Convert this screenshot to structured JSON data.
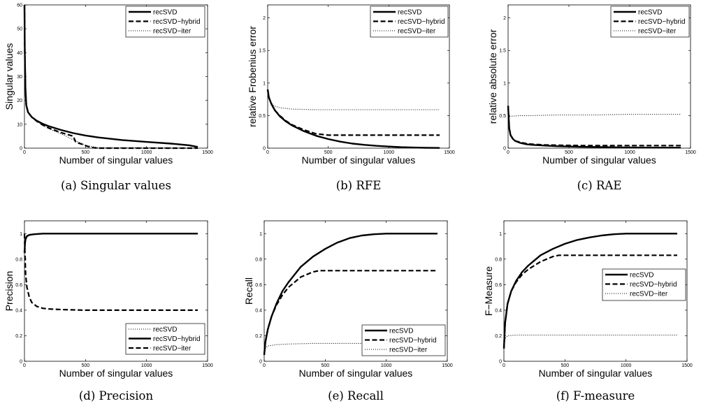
{
  "chart_data": [
    {
      "type": "line",
      "caption": "(a)  Singular values",
      "xlabel": "Number of singular values",
      "ylabel": "Singular values",
      "xlim": [
        0,
        1500
      ],
      "ylim": [
        0,
        60
      ],
      "xticks": [
        "0",
        "500",
        "1000",
        "1500"
      ],
      "yticks": [
        "0",
        "10",
        "20",
        "30",
        "40",
        "50",
        "60"
      ],
      "legend_position": "top-right",
      "series": [
        {
          "name": "recSVD",
          "style": "solid",
          "x": [
            0,
            3,
            8,
            15,
            30,
            60,
            100,
            150,
            200,
            300,
            400,
            500,
            600,
            800,
            1000,
            1200,
            1350,
            1420
          ],
          "y": [
            60,
            40,
            25,
            18,
            15,
            13,
            11.5,
            10.2,
            9.2,
            7.6,
            6.3,
            5.3,
            4.5,
            3.4,
            2.6,
            1.9,
            1.2,
            0.5
          ]
        },
        {
          "name": "recSVD−hybrid",
          "style": "dashed",
          "x": [
            0,
            3,
            8,
            15,
            30,
            60,
            100,
            150,
            200,
            300,
            400,
            420,
            480,
            520,
            560,
            600,
            800,
            1000,
            1200,
            1420
          ],
          "y": [
            60,
            40,
            25,
            18,
            15,
            13,
            11.3,
            9.7,
            8.4,
            6.5,
            5,
            2.5,
            1.5,
            0.7,
            0.2,
            0,
            0,
            0,
            0,
            0
          ]
        },
        {
          "name": "recSVD−iter",
          "style": "dotted",
          "x": [
            0,
            3,
            8,
            15,
            30,
            60,
            100,
            150,
            200,
            300,
            400,
            500,
            600,
            1420
          ],
          "y": [
            60,
            40,
            25,
            18,
            15,
            13,
            11.2,
            9.6,
            8.2,
            6,
            3.5,
            1.2,
            0.2,
            0.1
          ]
        }
      ]
    },
    {
      "type": "line",
      "caption": "(b)  RFE",
      "xlabel": "Number of singular values",
      "ylabel": "relative Frobenius error",
      "xlim": [
        0,
        1500
      ],
      "ylim": [
        0,
        2.2
      ],
      "xticks": [
        "0",
        "500",
        "1000",
        "1500"
      ],
      "yticks": [
        "0",
        "0.5",
        "1",
        "1.5",
        "2"
      ],
      "legend_position": "top-right",
      "series": [
        {
          "name": "recSVD",
          "style": "solid",
          "x": [
            0,
            10,
            30,
            60,
            100,
            150,
            200,
            300,
            400,
            500,
            600,
            700,
            800,
            900,
            1000,
            1100,
            1200,
            1300,
            1420
          ],
          "y": [
            0.9,
            0.78,
            0.68,
            0.58,
            0.49,
            0.41,
            0.35,
            0.26,
            0.19,
            0.14,
            0.1,
            0.07,
            0.05,
            0.035,
            0.025,
            0.015,
            0.01,
            0.005,
            0.003
          ]
        },
        {
          "name": "recSVD−hybrid",
          "style": "dashed",
          "x": [
            0,
            10,
            30,
            60,
            100,
            150,
            200,
            300,
            400,
            450,
            500,
            700,
            1000,
            1420
          ],
          "y": [
            0.9,
            0.78,
            0.68,
            0.58,
            0.5,
            0.42,
            0.36,
            0.28,
            0.22,
            0.21,
            0.2,
            0.2,
            0.2,
            0.2
          ]
        },
        {
          "name": "recSVD−iter",
          "style": "dotted",
          "x": [
            0,
            20,
            50,
            100,
            200,
            400,
            700,
            1000,
            1420
          ],
          "y": [
            0.9,
            0.72,
            0.65,
            0.62,
            0.6,
            0.59,
            0.59,
            0.59,
            0.59
          ]
        }
      ]
    },
    {
      "type": "line",
      "caption": "(c)  RAE",
      "xlabel": "Number of singular values",
      "ylabel": "relative absolute error",
      "xlim": [
        0,
        1500
      ],
      "ylim": [
        0,
        2.2
      ],
      "xticks": [
        "0",
        "500",
        "1000",
        "1500"
      ],
      "yticks": [
        "0",
        "0.5",
        "1",
        "1.5",
        "2"
      ],
      "legend_position": "top-right",
      "series": [
        {
          "name": "recSVD",
          "style": "solid",
          "x": [
            0,
            5,
            10,
            20,
            40,
            60,
            100,
            150,
            200,
            300,
            400,
            600,
            800,
            1000,
            1420
          ],
          "y": [
            0.65,
            0.45,
            0.3,
            0.2,
            0.14,
            0.11,
            0.08,
            0.06,
            0.05,
            0.04,
            0.03,
            0.02,
            0.015,
            0.01,
            0.008
          ]
        },
        {
          "name": "recSVD−hybrid",
          "style": "dashed",
          "x": [
            0,
            5,
            10,
            20,
            40,
            60,
            100,
            150,
            200,
            300,
            400,
            600,
            800,
            1000,
            1420
          ],
          "y": [
            0.65,
            0.45,
            0.3,
            0.2,
            0.14,
            0.11,
            0.09,
            0.07,
            0.06,
            0.05,
            0.045,
            0.04,
            0.04,
            0.04,
            0.04
          ]
        },
        {
          "name": "recSVD−iter",
          "style": "dotted",
          "x": [
            0,
            10,
            30,
            100,
            200,
            400,
            700,
            1000,
            1420
          ],
          "y": [
            0.6,
            0.48,
            0.49,
            0.5,
            0.5,
            0.51,
            0.51,
            0.52,
            0.52
          ]
        }
      ]
    },
    {
      "type": "line",
      "caption": "(d)  Precision",
      "xlabel": "Number of singular values",
      "ylabel": "Precision",
      "xlim": [
        0,
        1500
      ],
      "ylim": [
        0,
        1.1
      ],
      "xticks": [
        "0",
        "500",
        "1000",
        "1500"
      ],
      "yticks": [
        "0",
        "0.2",
        "0.4",
        "0.6",
        "0.8",
        "1"
      ],
      "legend_position": "bottom-right",
      "series": [
        {
          "name": "recSVD",
          "style": "dotted",
          "x": [
            0,
            10,
            30,
            60,
            100,
            200,
            400,
            800,
            1420
          ],
          "y": [
            0.85,
            0.95,
            0.98,
            0.99,
            1,
            1,
            1,
            1,
            1
          ]
        },
        {
          "name": "recSVD−hybrid",
          "style": "solid",
          "x": [
            0,
            5,
            10,
            20,
            40,
            80,
            150,
            300,
            600,
            1000,
            1420
          ],
          "y": [
            0.85,
            0.93,
            0.96,
            0.98,
            0.99,
            0.995,
            1,
            1,
            1,
            1,
            1
          ]
        },
        {
          "name": "recSVD−iter",
          "style": "dashed",
          "x": [
            0,
            5,
            10,
            20,
            40,
            60,
            100,
            150,
            200,
            300,
            500,
            800,
            1100,
            1420
          ],
          "y": [
            1,
            0.8,
            0.68,
            0.58,
            0.5,
            0.46,
            0.43,
            0.415,
            0.41,
            0.405,
            0.4,
            0.4,
            0.4,
            0.4
          ]
        }
      ]
    },
    {
      "type": "line",
      "caption": "(e)  Recall",
      "xlabel": "Number of singular values",
      "ylabel": "Recall",
      "xlim": [
        0,
        1500
      ],
      "ylim": [
        0,
        1.1
      ],
      "xticks": [
        "0",
        "500",
        "1000",
        "1500"
      ],
      "yticks": [
        "0",
        "0.2",
        "0.4",
        "0.6",
        "0.8",
        "1"
      ],
      "legend_position": "bottom-right",
      "series": [
        {
          "name": "recSVD",
          "style": "solid",
          "x": [
            0,
            10,
            30,
            60,
            100,
            150,
            200,
            300,
            400,
            500,
            600,
            700,
            800,
            900,
            1000,
            1100,
            1200,
            1420
          ],
          "y": [
            0.05,
            0.15,
            0.25,
            0.35,
            0.45,
            0.55,
            0.62,
            0.74,
            0.82,
            0.88,
            0.93,
            0.965,
            0.985,
            0.995,
            1,
            1,
            1,
            1
          ]
        },
        {
          "name": "recSVD−hybrid",
          "style": "dashed",
          "x": [
            0,
            10,
            30,
            60,
            100,
            150,
            200,
            300,
            400,
            450,
            500,
            700,
            1000,
            1420
          ],
          "y": [
            0.05,
            0.15,
            0.25,
            0.35,
            0.44,
            0.52,
            0.58,
            0.66,
            0.7,
            0.71,
            0.71,
            0.71,
            0.71,
            0.71
          ]
        },
        {
          "name": "recSVD−iter",
          "style": "dotted",
          "x": [
            0,
            10,
            30,
            100,
            200,
            400,
            700,
            1000,
            1420
          ],
          "y": [
            0.05,
            0.1,
            0.12,
            0.13,
            0.135,
            0.14,
            0.14,
            0.14,
            0.14
          ]
        }
      ]
    },
    {
      "type": "line",
      "caption": "(f)  F-measure",
      "xlabel": "Number of singular values",
      "ylabel": "F−Measure",
      "xlim": [
        0,
        1500
      ],
      "ylim": [
        0,
        1.1
      ],
      "xticks": [
        "0",
        "500",
        "1000",
        "1500"
      ],
      "yticks": [
        "0",
        "0.2",
        "0.4",
        "0.6",
        "0.8",
        "1"
      ],
      "legend_position": "center-right",
      "series": [
        {
          "name": "recSVD",
          "style": "solid",
          "x": [
            0,
            10,
            30,
            60,
            100,
            150,
            200,
            300,
            400,
            500,
            600,
            700,
            800,
            900,
            1000,
            1100,
            1200,
            1420
          ],
          "y": [
            0.1,
            0.3,
            0.45,
            0.55,
            0.63,
            0.7,
            0.75,
            0.83,
            0.88,
            0.92,
            0.95,
            0.97,
            0.985,
            0.995,
            1,
            1,
            1,
            1
          ]
        },
        {
          "name": "recSVD−hybrid",
          "style": "dashed",
          "x": [
            0,
            10,
            30,
            60,
            100,
            150,
            200,
            300,
            400,
            450,
            500,
            700,
            1000,
            1420
          ],
          "y": [
            0.1,
            0.3,
            0.45,
            0.55,
            0.62,
            0.68,
            0.72,
            0.78,
            0.82,
            0.83,
            0.83,
            0.83,
            0.83,
            0.83
          ]
        },
        {
          "name": "recSVD−iter",
          "style": "dotted",
          "x": [
            0,
            10,
            30,
            100,
            200,
            400,
            700,
            1000,
            1420
          ],
          "y": [
            0.1,
            0.18,
            0.2,
            0.205,
            0.205,
            0.205,
            0.205,
            0.205,
            0.205
          ]
        }
      ]
    }
  ]
}
